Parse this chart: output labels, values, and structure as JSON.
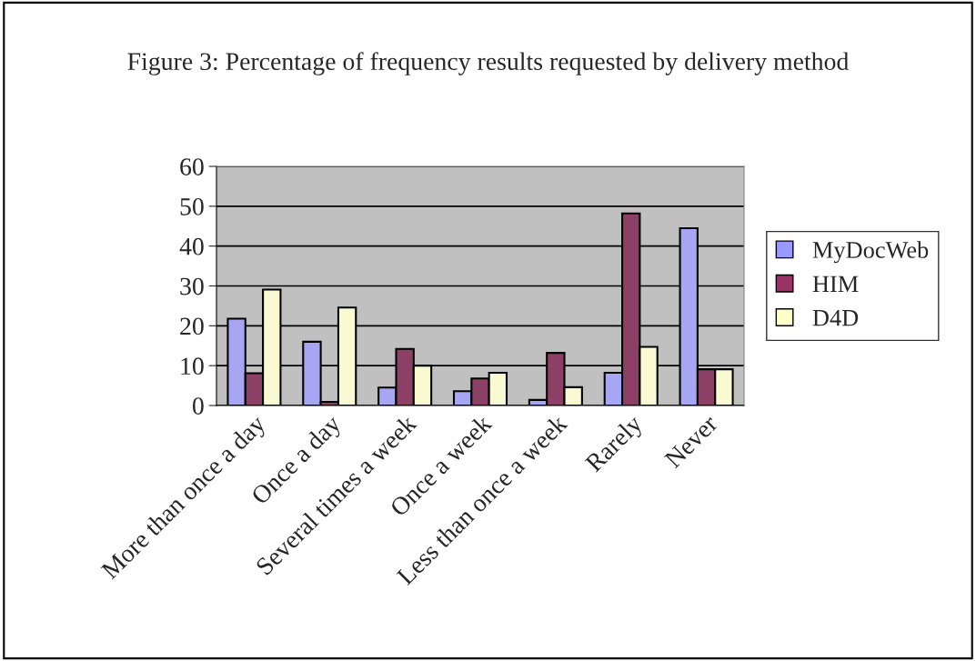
{
  "chart_data": {
    "type": "bar",
    "title": "Figure 3: Percentage of frequency results requested by delivery method",
    "categories": [
      "More than once a day",
      "Once a day",
      "Several times a week",
      "Once a week",
      "Less than once a week",
      "Rarely",
      "Never"
    ],
    "series": [
      {
        "name": "MyDocWeb",
        "color": "#9999ff",
        "values": [
          21.8,
          16,
          4.5,
          3.6,
          1.4,
          8.2,
          44.5
        ]
      },
      {
        "name": "HIM",
        "color": "#993366",
        "values": [
          8.1,
          0.9,
          14.2,
          6.8,
          13.2,
          48.2,
          9.1
        ]
      },
      {
        "name": "D4D",
        "color": "#ffffcc",
        "values": [
          29.1,
          24.6,
          10,
          8.2,
          4.6,
          14.7,
          9.1
        ]
      }
    ],
    "ylim": [
      0,
      60
    ],
    "yticks": [
      0,
      10,
      20,
      30,
      40,
      50,
      60
    ],
    "grid": "y",
    "legend": "right"
  }
}
